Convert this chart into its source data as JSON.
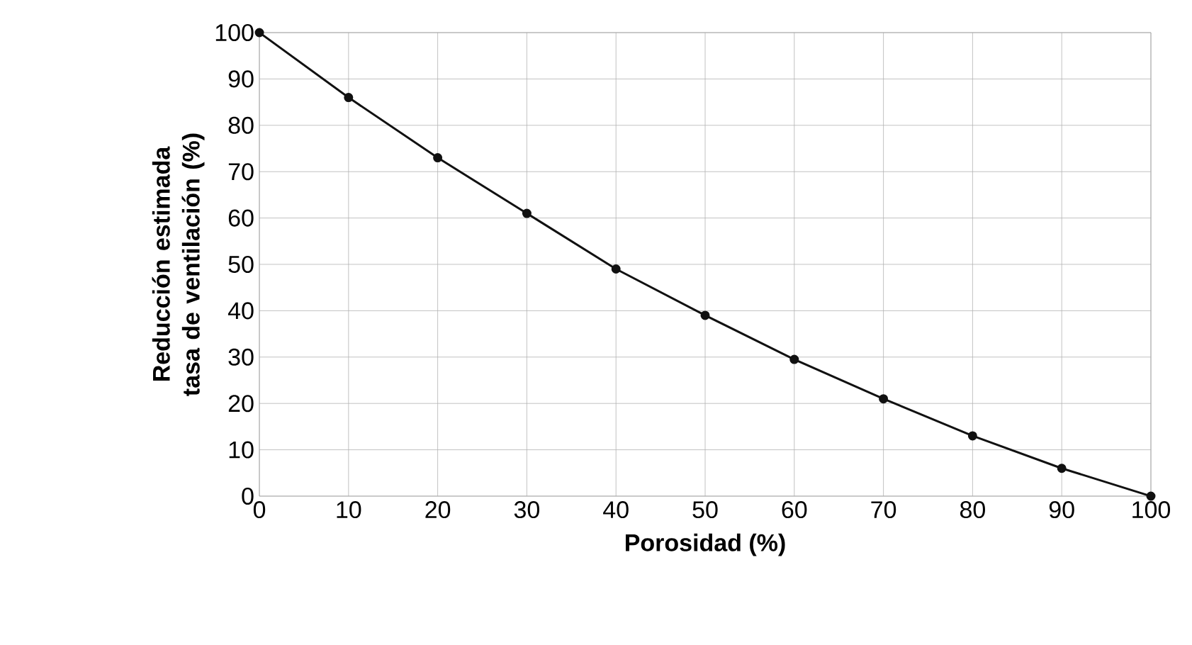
{
  "chart_data": {
    "type": "line",
    "xlabel": "Porosidad (%)",
    "ylabel": "Reducción estimada tasa de ventilación (%)",
    "x": [
      0,
      10,
      20,
      30,
      40,
      50,
      60,
      70,
      80,
      90,
      100
    ],
    "values": [
      100,
      86,
      73,
      61,
      49,
      39,
      29.5,
      21,
      13,
      6,
      0
    ],
    "color": "#111111",
    "marker": "circle",
    "line_style": "solid",
    "xlim": [
      0,
      100
    ],
    "xticks": [
      0,
      10,
      20,
      30,
      40,
      50,
      60,
      70,
      80,
      90,
      100
    ],
    "ylim": [
      0,
      100
    ],
    "yticks": [
      0,
      10,
      20,
      30,
      40,
      50,
      60,
      70,
      80,
      90,
      100
    ],
    "grid": true
  }
}
